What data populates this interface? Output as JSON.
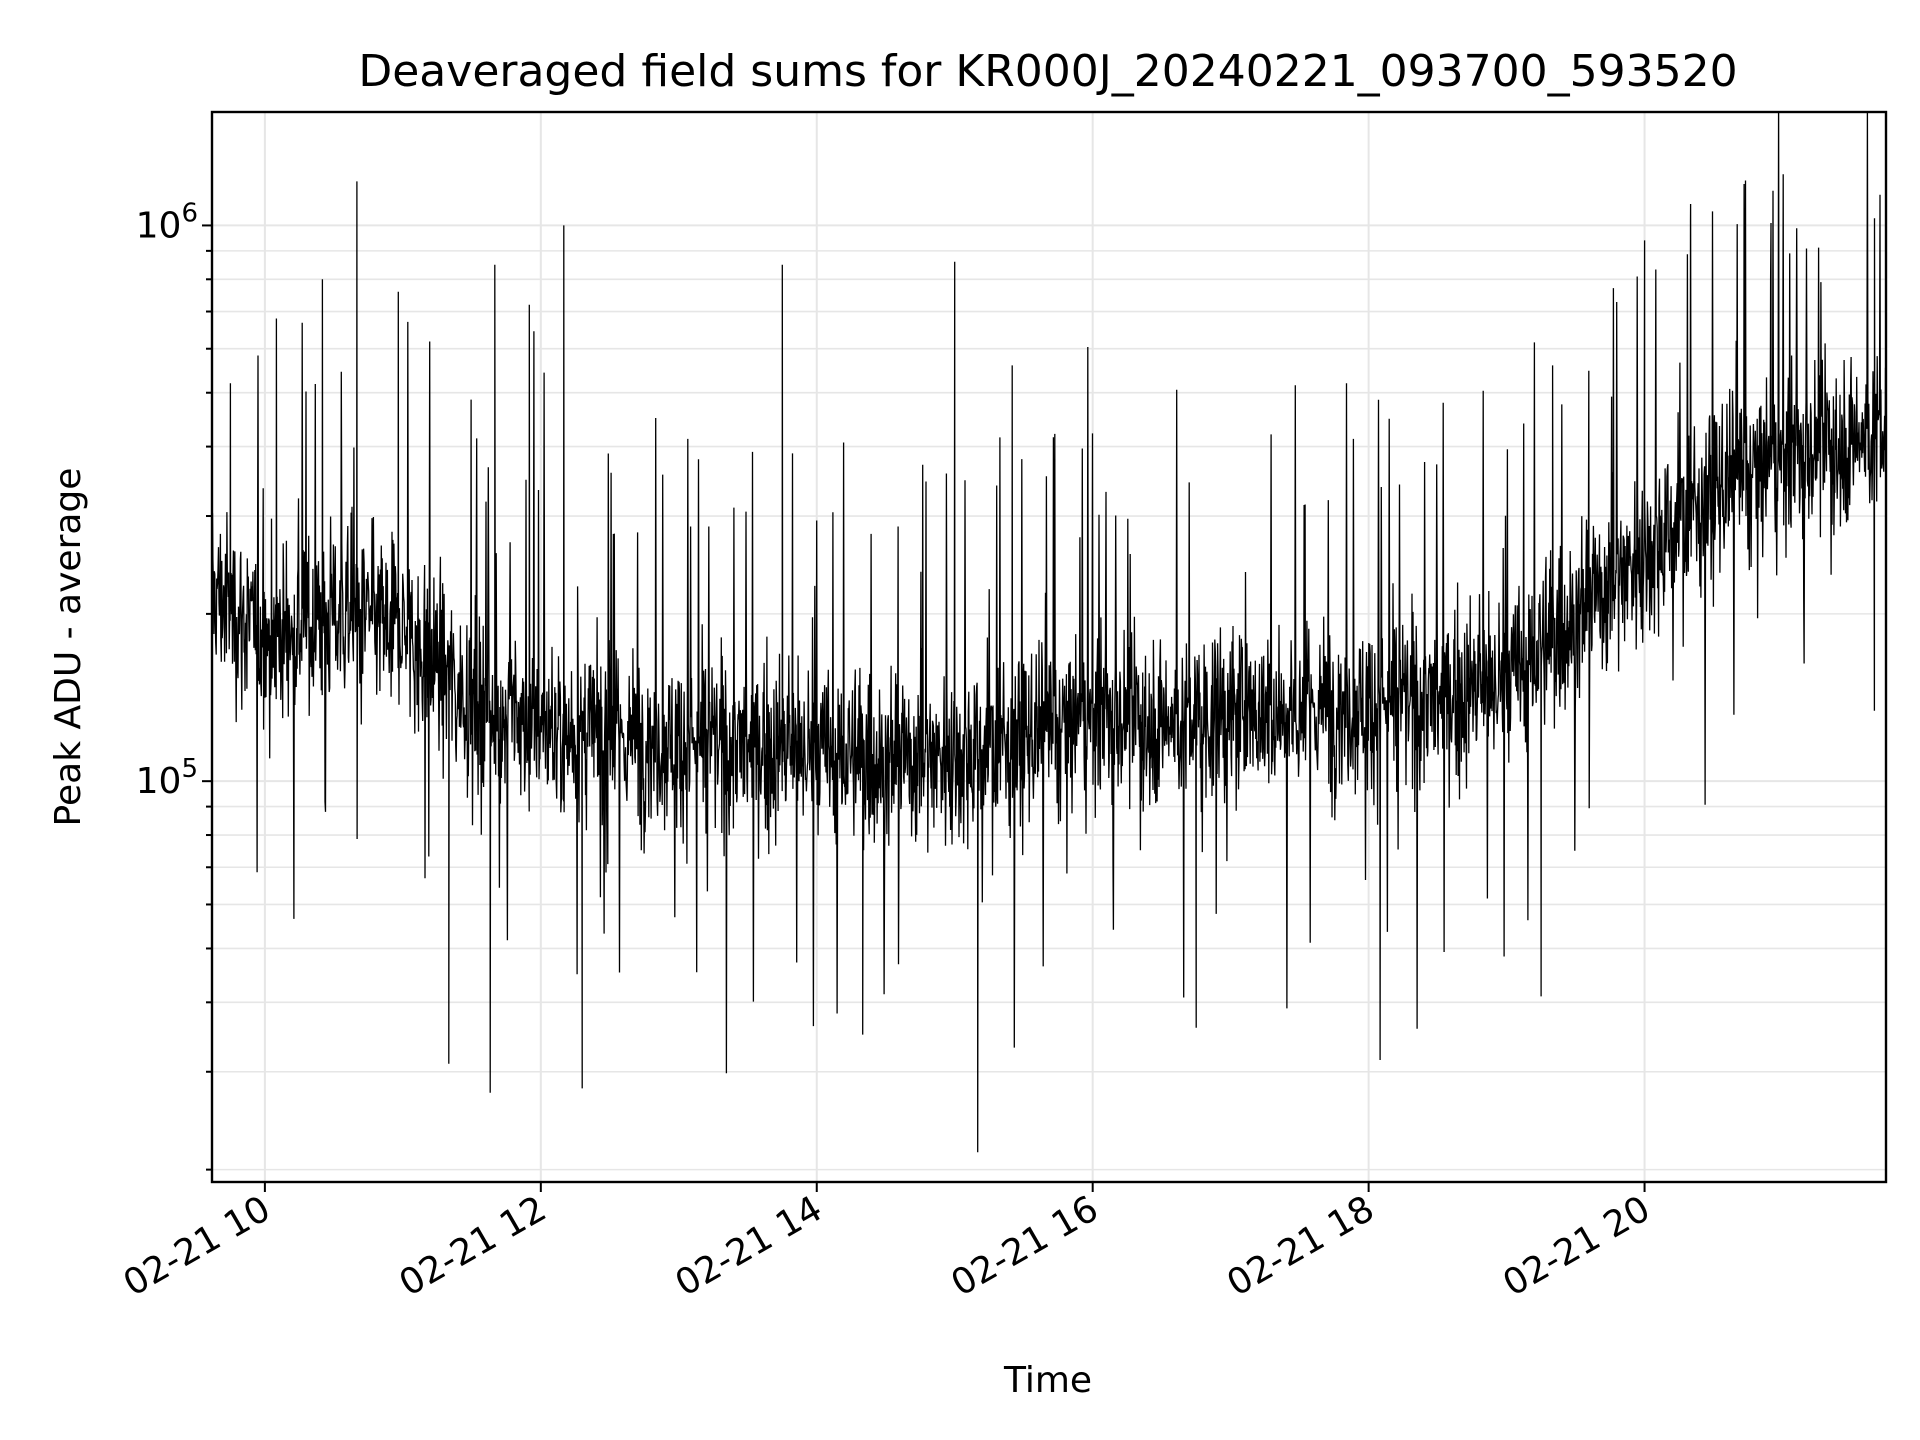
{
  "chart_data": {
    "type": "line",
    "title": "Deaveraged field sums for KR000J_20240221_093700_593520",
    "xlabel": "Time",
    "ylabel": "Peak ADU - average",
    "x_scale": "time",
    "y_scale": "log",
    "xlim": [
      "2024-02-21 09:37",
      "2024-02-21 21:45"
    ],
    "ylim": [
      19000,
      1600000
    ],
    "x_ticks": [
      {
        "value": "2024-02-21 10:00",
        "label": "02-21 10"
      },
      {
        "value": "2024-02-21 12:00",
        "label": "02-21 12"
      },
      {
        "value": "2024-02-21 14:00",
        "label": "02-21 14"
      },
      {
        "value": "2024-02-21 16:00",
        "label": "02-21 16"
      },
      {
        "value": "2024-02-21 18:00",
        "label": "02-21 18"
      },
      {
        "value": "2024-02-21 20:00",
        "label": "02-21 20"
      }
    ],
    "y_ticks": [
      {
        "value": 100000,
        "base": "10",
        "exp": "5"
      },
      {
        "value": 1000000,
        "base": "10",
        "exp": "6"
      }
    ],
    "grid": true,
    "line_color": "#000000",
    "grid_color": "#e6e6e6",
    "series": [
      {
        "x": [
          "2024-02-21 09:37",
          "2024-02-21 10:00",
          "2024-02-21 10:30",
          "2024-02-21 11:00",
          "2024-02-21 11:30",
          "2024-02-21 12:00",
          "2024-02-21 12:30",
          "2024-02-21 13:00",
          "2024-02-21 13:30",
          "2024-02-21 14:00",
          "2024-02-21 14:30",
          "2024-02-21 15:00",
          "2024-02-21 15:30",
          "2024-02-21 16:00",
          "2024-02-21 16:30",
          "2024-02-21 17:00",
          "2024-02-21 17:30",
          "2024-02-21 18:00",
          "2024-02-21 18:30",
          "2024-02-21 19:00",
          "2024-02-21 19:30",
          "2024-02-21 20:00",
          "2024-02-21 20:30",
          "2024-02-21 21:00",
          "2024-02-21 21:45"
        ],
        "baseline": [
          220000,
          180000,
          200000,
          190000,
          140000,
          125000,
          120000,
          118000,
          115000,
          112000,
          110000,
          112000,
          118000,
          130000,
          128000,
          132000,
          135000,
          138000,
          140000,
          150000,
          200000,
          260000,
          330000,
          380000,
          430000
        ],
        "peaks": [
          {
            "x": "2024-02-21 09:45",
            "y": 520000
          },
          {
            "x": "2024-02-21 10:05",
            "y": 680000
          },
          {
            "x": "2024-02-21 10:25",
            "y": 800000
          },
          {
            "x": "2024-02-21 10:40",
            "y": 1200000
          },
          {
            "x": "2024-02-21 10:58",
            "y": 760000
          },
          {
            "x": "2024-02-21 11:40",
            "y": 850000
          },
          {
            "x": "2024-02-21 11:55",
            "y": 720000
          },
          {
            "x": "2024-02-21 12:10",
            "y": 1000000
          },
          {
            "x": "2024-02-21 13:45",
            "y": 850000
          },
          {
            "x": "2024-02-21 15:00",
            "y": 860000
          },
          {
            "x": "2024-02-21 15:25",
            "y": 560000
          },
          {
            "x": "2024-02-21 19:20",
            "y": 560000
          },
          {
            "x": "2024-02-21 20:00",
            "y": 940000
          },
          {
            "x": "2024-02-21 20:20",
            "y": 1020000
          },
          {
            "x": "2024-02-21 20:55",
            "y": 1010000
          },
          {
            "x": "2024-02-21 21:40",
            "y": 1030000
          }
        ],
        "dips": [
          {
            "x": "2024-02-21 11:20",
            "y": 31000
          },
          {
            "x": "2024-02-21 11:38",
            "y": 27500
          },
          {
            "x": "2024-02-21 12:18",
            "y": 28000
          },
          {
            "x": "2024-02-21 14:20",
            "y": 35000
          },
          {
            "x": "2024-02-21 15:10",
            "y": 21500
          },
          {
            "x": "2024-02-21 16:45",
            "y": 36000
          },
          {
            "x": "2024-02-21 18:05",
            "y": 31500
          },
          {
            "x": "2024-02-21 19:15",
            "y": 41000
          }
        ]
      }
    ]
  }
}
